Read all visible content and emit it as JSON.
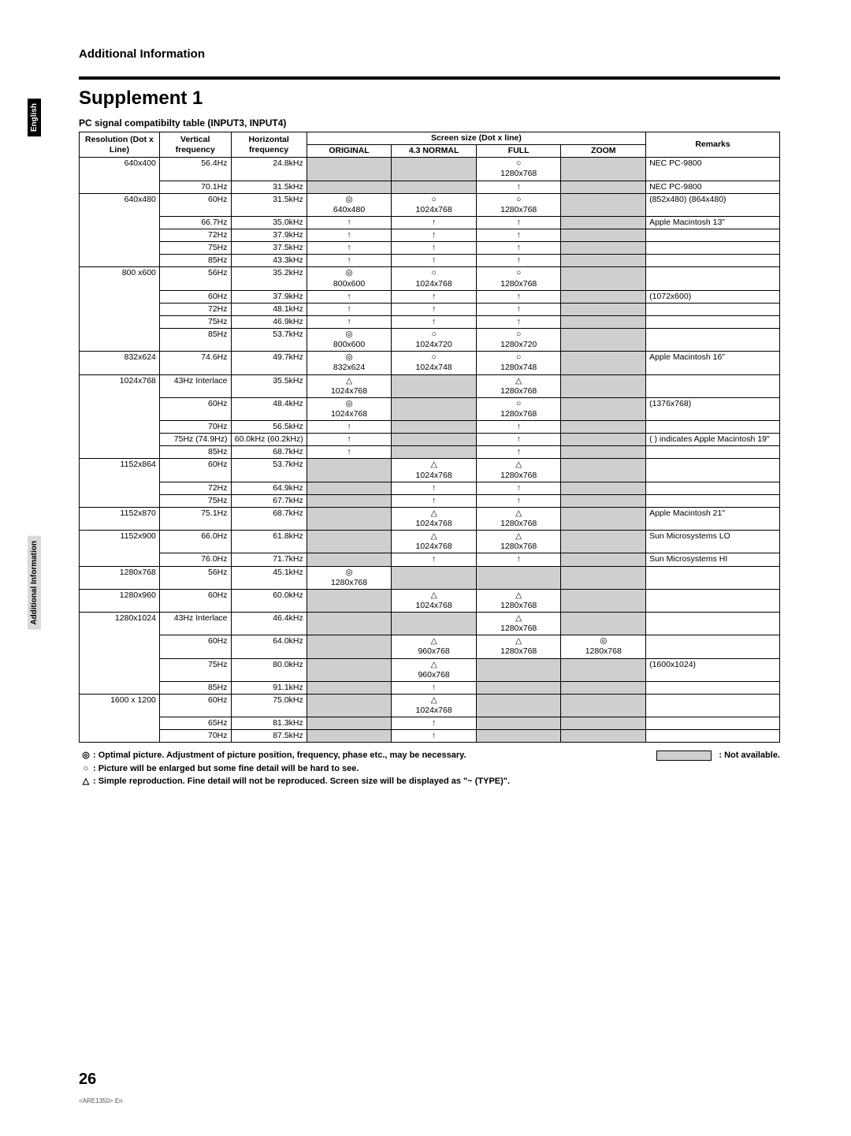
{
  "sideTabs": {
    "lang": "English",
    "section": "Additional Information"
  },
  "sectionHeader": "Additional Information",
  "pageTitle": "Supplement 1",
  "tableCaption": "PC signal compatibilty table (INPUT3, INPUT4)",
  "columns": {
    "resolution": "Resolution (Dot x Line)",
    "vfreq": "Vertical frequency",
    "hfreq": "Horizontal frequency",
    "screenGroup": "Screen size (Dot x line)",
    "original": "ORIGINAL",
    "normal": "4.3 NORMAL",
    "full": "FULL",
    "zoom": "ZOOM",
    "remarks": "Remarks"
  },
  "symbols": {
    "optimal": "◎",
    "enlarged": "○",
    "simple": "△",
    "same": "↑"
  },
  "rows": [
    {
      "res": "640x400",
      "vf": "56.4Hz",
      "hf": "24.8kHz",
      "orig": {
        "na": true
      },
      "norm": {
        "na": true
      },
      "full": {
        "sym": "○",
        "sub": "1280x768"
      },
      "zoom": {
        "na": true
      },
      "rem": "NEC PC-9800"
    },
    {
      "vf": "70.1Hz",
      "hf": "31.5kHz",
      "orig": {
        "na": true
      },
      "norm": {
        "na": true
      },
      "full": {
        "sym": "↑"
      },
      "zoom": {
        "na": true
      },
      "rem": "NEC PC-9800"
    },
    {
      "res": "640x480",
      "vf": "60Hz",
      "hf": "31.5kHz",
      "orig": {
        "sym": "◎",
        "sub": "640x480"
      },
      "norm": {
        "sym": "○",
        "sub": "1024x768"
      },
      "full": {
        "sym": "○",
        "sub": "1280x768"
      },
      "zoom": {
        "na": true
      },
      "rem": "(852x480) (864x480)"
    },
    {
      "vf": "66.7Hz",
      "hf": "35.0kHz",
      "orig": {
        "sym": "↑"
      },
      "norm": {
        "sym": "↑"
      },
      "full": {
        "sym": "↑"
      },
      "zoom": {
        "na": true
      },
      "rem": "Apple Macintosh 13\""
    },
    {
      "vf": "72Hz",
      "hf": "37.9kHz",
      "orig": {
        "sym": "↑"
      },
      "norm": {
        "sym": "↑"
      },
      "full": {
        "sym": "↑"
      },
      "zoom": {
        "na": true
      }
    },
    {
      "vf": "75Hz",
      "hf": "37.5kHz",
      "orig": {
        "sym": "↑"
      },
      "norm": {
        "sym": "↑"
      },
      "full": {
        "sym": "↑"
      },
      "zoom": {
        "na": true
      }
    },
    {
      "vf": "85Hz",
      "hf": "43.3kHz",
      "orig": {
        "sym": "↑"
      },
      "norm": {
        "sym": "↑"
      },
      "full": {
        "sym": "↑"
      },
      "zoom": {
        "na": true
      }
    },
    {
      "res": "800 x600",
      "vf": "56Hz",
      "hf": "35.2kHz",
      "orig": {
        "sym": "◎",
        "sub": "800x600"
      },
      "norm": {
        "sym": "○",
        "sub": "1024x768"
      },
      "full": {
        "sym": "○",
        "sub": "1280x768"
      },
      "zoom": {
        "na": true
      }
    },
    {
      "vf": "60Hz",
      "hf": "37.9kHz",
      "orig": {
        "sym": "↑"
      },
      "norm": {
        "sym": "↑"
      },
      "full": {
        "sym": "↑"
      },
      "zoom": {
        "na": true
      },
      "rem": "(1072x600)"
    },
    {
      "vf": "72Hz",
      "hf": "48.1kHz",
      "orig": {
        "sym": "↑"
      },
      "norm": {
        "sym": "↑"
      },
      "full": {
        "sym": "↑"
      },
      "zoom": {
        "na": true
      }
    },
    {
      "vf": "75Hz",
      "hf": "46.9kHz",
      "orig": {
        "sym": "↑"
      },
      "norm": {
        "sym": "↑"
      },
      "full": {
        "sym": "↑"
      },
      "zoom": {
        "na": true
      }
    },
    {
      "vf": "85Hz",
      "hf": "53.7kHz",
      "orig": {
        "sym": "◎",
        "sub": "800x600"
      },
      "norm": {
        "sym": "○",
        "sub": "1024x720"
      },
      "full": {
        "sym": "○",
        "sub": "1280x720"
      },
      "zoom": {
        "na": true
      }
    },
    {
      "res": "832x624",
      "vf": "74.6Hz",
      "hf": "49.7kHz",
      "orig": {
        "sym": "◎",
        "sub": "832x624"
      },
      "norm": {
        "sym": "○",
        "sub": "1024x748"
      },
      "full": {
        "sym": "○",
        "sub": "1280x748"
      },
      "zoom": {
        "na": true
      },
      "rem": "Apple Macintosh 16\""
    },
    {
      "res": "1024x768",
      "vf": "43Hz Interlace",
      "hf": "35.5kHz",
      "orig": {
        "sym": "△",
        "sub": "1024x768"
      },
      "norm": {
        "na": true
      },
      "full": {
        "sym": "△",
        "sub": "1280x768"
      },
      "zoom": {
        "na": true
      }
    },
    {
      "vf": "60Hz",
      "hf": "48.4kHz",
      "orig": {
        "sym": "◎",
        "sub": "1024x768"
      },
      "norm": {
        "na": true
      },
      "full": {
        "sym": "○",
        "sub": "1280x768"
      },
      "zoom": {
        "na": true
      },
      "rem": "(1376x768)"
    },
    {
      "vf": "70Hz",
      "hf": "56.5kHz",
      "orig": {
        "sym": "↑"
      },
      "norm": {
        "na": true
      },
      "full": {
        "sym": "↑"
      },
      "zoom": {
        "na": true
      }
    },
    {
      "vf": "75Hz (74.9Hz)",
      "hf": "60.0kHz (60.2kHz)",
      "orig": {
        "sym": "↑"
      },
      "norm": {
        "na": true
      },
      "full": {
        "sym": "↑"
      },
      "zoom": {
        "na": true
      },
      "rem": "( ) indicates Apple Macintosh 19\""
    },
    {
      "vf": "85Hz",
      "hf": "68.7kHz",
      "orig": {
        "sym": "↑"
      },
      "norm": {
        "na": true
      },
      "full": {
        "sym": "↑"
      },
      "zoom": {
        "na": true
      }
    },
    {
      "res": "1152x864",
      "vf": "60Hz",
      "hf": "53.7kHz",
      "orig": {
        "na": true
      },
      "norm": {
        "sym": "△",
        "sub": "1024x768"
      },
      "full": {
        "sym": "△",
        "sub": "1280x768"
      },
      "zoom": {
        "na": true
      }
    },
    {
      "vf": "72Hz",
      "hf": "64.9kHz",
      "orig": {
        "na": true
      },
      "norm": {
        "sym": "↑"
      },
      "full": {
        "sym": "↑"
      },
      "zoom": {
        "na": true
      }
    },
    {
      "vf": "75Hz",
      "hf": "67.7kHz",
      "orig": {
        "na": true
      },
      "norm": {
        "sym": "↑"
      },
      "full": {
        "sym": "↑"
      },
      "zoom": {
        "na": true
      }
    },
    {
      "res": "1152x870",
      "vf": "75.1Hz",
      "hf": "68.7kHz",
      "orig": {
        "na": true
      },
      "norm": {
        "sym": "△",
        "sub": "1024x768"
      },
      "full": {
        "sym": "△",
        "sub": "1280x768"
      },
      "zoom": {
        "na": true
      },
      "rem": "Apple Macintosh 21\""
    },
    {
      "res": "1152x900",
      "vf": "66.0Hz",
      "hf": "61.8kHz",
      "orig": {
        "na": true
      },
      "norm": {
        "sym": "△",
        "sub": "1024x768"
      },
      "full": {
        "sym": "△",
        "sub": "1280x768"
      },
      "zoom": {
        "na": true
      },
      "rem": "Sun Microsystems LO"
    },
    {
      "vf": "76.0Hz",
      "hf": "71.7kHz",
      "orig": {
        "na": true
      },
      "norm": {
        "sym": "↑"
      },
      "full": {
        "sym": "↑"
      },
      "zoom": {
        "na": true
      },
      "rem": "Sun Microsystems HI"
    },
    {
      "res": "1280x768",
      "vf": "56Hz",
      "hf": "45.1kHz",
      "orig": {
        "sym": "◎",
        "sub": "1280x768"
      },
      "norm": {
        "na": true
      },
      "full": {
        "na": true
      },
      "zoom": {
        "na": true
      }
    },
    {
      "res": "1280x960",
      "vf": "60Hz",
      "hf": "60.0kHz",
      "orig": {
        "na": true
      },
      "norm": {
        "sym": "△",
        "sub": "1024x768"
      },
      "full": {
        "sym": "△",
        "sub": "1280x768"
      },
      "zoom": {
        "na": true
      }
    },
    {
      "res": "1280x1024",
      "vf": "43Hz Interlace",
      "hf": "46.4kHz",
      "orig": {
        "na": true
      },
      "norm": {
        "na": true
      },
      "full": {
        "sym": "△",
        "sub": "1280x768"
      },
      "zoom": {
        "na": true
      }
    },
    {
      "vf": "60Hz",
      "hf": "64.0kHz",
      "orig": {
        "na": true
      },
      "norm": {
        "sym": "△",
        "sub": "960x768"
      },
      "full": {
        "sym": "△",
        "sub": "1280x768"
      },
      "zoom": {
        "sym": "◎",
        "sub": "1280x768"
      }
    },
    {
      "vf": "75Hz",
      "hf": "80.0kHz",
      "orig": {
        "na": true
      },
      "norm": {
        "sym": "△",
        "sub": "960x768"
      },
      "full": {
        "na": true
      },
      "zoom": {
        "na": true
      },
      "rem": "(1600x1024)"
    },
    {
      "vf": "85Hz",
      "hf": "91.1kHz",
      "orig": {
        "na": true
      },
      "norm": {
        "sym": "↑"
      },
      "full": {
        "na": true
      },
      "zoom": {
        "na": true
      }
    },
    {
      "res": "1600 x 1200",
      "vf": "60Hz",
      "hf": "75.0kHz",
      "orig": {
        "na": true
      },
      "norm": {
        "sym": "△",
        "sub": "1024x768"
      },
      "full": {
        "na": true
      },
      "zoom": {
        "na": true
      }
    },
    {
      "vf": "65Hz",
      "hf": "81.3kHz",
      "orig": {
        "na": true
      },
      "norm": {
        "sym": "↑"
      },
      "full": {
        "na": true
      },
      "zoom": {
        "na": true
      }
    },
    {
      "vf": "70Hz",
      "hf": "87.5kHz",
      "orig": {
        "na": true
      },
      "norm": {
        "sym": "↑"
      },
      "full": {
        "na": true
      },
      "zoom": {
        "na": true
      }
    }
  ],
  "legend": {
    "optimal": ": Optimal picture. Adjustment of picture position, frequency, phase etc., may be necessary.",
    "enlarged": ": Picture will be enlarged but some fine detail will be hard to see.",
    "simple": ": Simple reproduction. Fine detail will not be reproduced. Screen size will be displayed as \"~ (TYPE)\".",
    "notAvailable": ": Not available."
  },
  "pageNumber": "26",
  "docId": "<ARE1350> En"
}
